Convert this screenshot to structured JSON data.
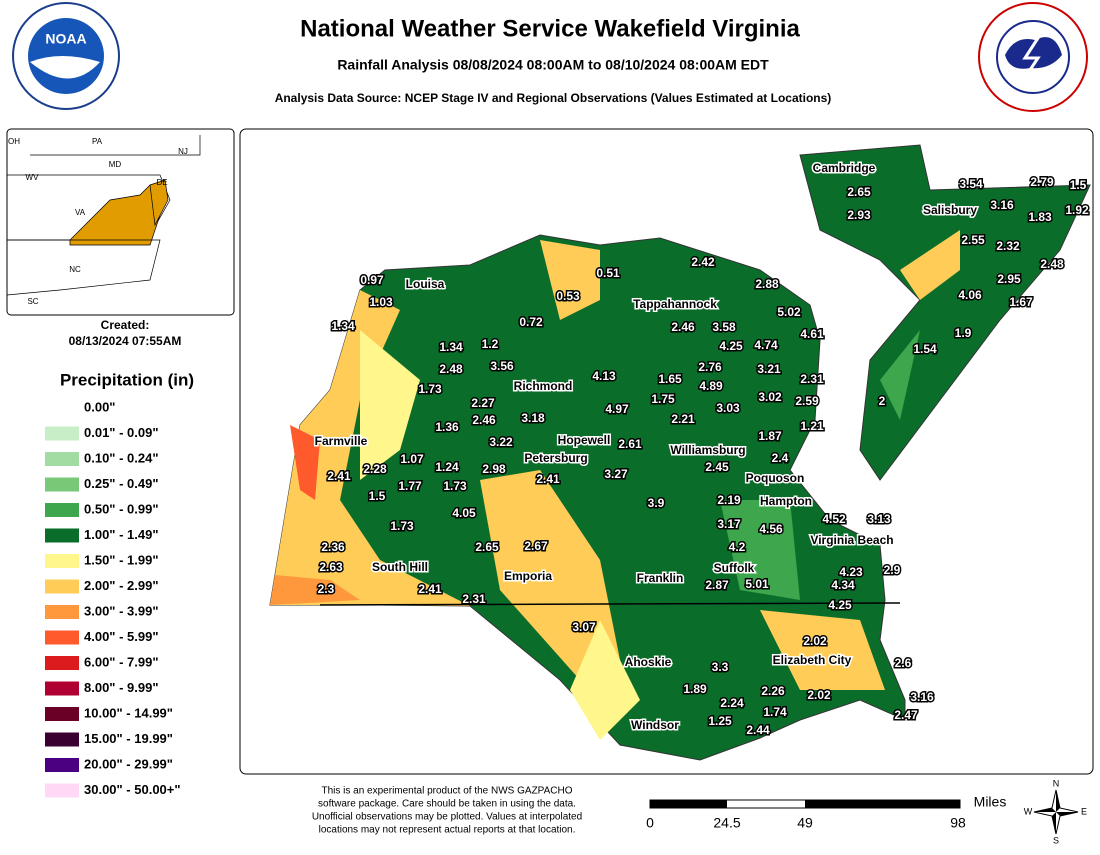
{
  "header": {
    "title": "National Weather Service Wakefield Virginia",
    "subtitle": "Rainfall Analysis 08/08/2024 08:00AM to 08/10/2024 08:00AM EDT",
    "source": "Analysis Data Source: NCEP Stage IV and Regional Observations (Values Estimated at Locations)",
    "left_logo": "NOAA"
  },
  "inset": {
    "states": [
      "PA",
      "NJ",
      "OH",
      "MD",
      "DE",
      "WV",
      "VA",
      "NC",
      "SC"
    ]
  },
  "created": {
    "label": "Created:",
    "value": "08/13/2024 07:55AM"
  },
  "legend": {
    "title": "Precipitation (in)",
    "items": [
      {
        "label": "0.00\"",
        "color": "#ffffff"
      },
      {
        "label": "0.01\" - 0.09\"",
        "color": "#c8eec8"
      },
      {
        "label": "0.10\" - 0.24\"",
        "color": "#a2dca2"
      },
      {
        "label": "0.25\" - 0.49\"",
        "color": "#78c878"
      },
      {
        "label": "0.50\" - 0.99\"",
        "color": "#3ea64c"
      },
      {
        "label": "1.00\" - 1.49\"",
        "color": "#0a6e2a"
      },
      {
        "label": "1.50\" - 1.99\"",
        "color": "#fff68c"
      },
      {
        "label": "2.00\" - 2.99\"",
        "color": "#ffcc58"
      },
      {
        "label": "3.00\" - 3.99\"",
        "color": "#ff983c"
      },
      {
        "label": "4.00\" - 5.99\"",
        "color": "#ff5a2c"
      },
      {
        "label": "6.00\" - 7.99\"",
        "color": "#dc1c1c"
      },
      {
        "label": "8.00\" - 9.99\"",
        "color": "#b00032"
      },
      {
        "label": "10.00\" - 14.99\"",
        "color": "#6a0026"
      },
      {
        "label": "15.00\" - 19.99\"",
        "color": "#3a0030"
      },
      {
        "label": "20.00\" - 29.99\"",
        "color": "#4a0080"
      },
      {
        "label": "30.00\" - 50.00+\"",
        "color": "#ffd8f6"
      }
    ]
  },
  "places": [
    "Louisa",
    "Tappahannock",
    "Richmond",
    "Hopewell",
    "Williamsburg",
    "Petersburg",
    "Poquoson",
    "Farmville",
    "Hampton",
    "Virginia Beach",
    "South Hill",
    "Emporia",
    "Franklin",
    "Suffolk",
    "Elizabeth City",
    "Ahoskie",
    "Windsor",
    "Cambridge",
    "Salisbury"
  ],
  "stations": [
    "0.97",
    "1.03",
    "1.34",
    "1.34",
    "1.2",
    "2.48",
    "3.56",
    "0.51",
    "0.53",
    "0.72",
    "2.42",
    "2.88",
    "5.02",
    "4.61",
    "2.46",
    "3.58",
    "4.25",
    "4.74",
    "2.76",
    "3.21",
    "1.65",
    "4.89",
    "2.31",
    "4.13",
    "1.73",
    "2.27",
    "1.75",
    "3.02",
    "2.59",
    "4.97",
    "3.03",
    "2.21",
    "3.18",
    "1.36",
    "2.46",
    "1.21",
    "1.87",
    "3.22",
    "2.61",
    "2.4",
    "2.45",
    "1.07",
    "1.24",
    "2.98",
    "3.27",
    "2.41",
    "2.28",
    "1.77",
    "1.73",
    "2.41",
    "1.5",
    "2.19",
    "3.9",
    "4.05",
    "1.73",
    "3.17",
    "4.56",
    "4.52",
    "3.13",
    "2.65",
    "2.67",
    "4.2",
    "2.36",
    "2.63",
    "2.3",
    "2.41",
    "2.31",
    "2.87",
    "5.01",
    "4.34",
    "4.23",
    "2.9",
    "4.25",
    "3.07",
    "2.02",
    "2.6",
    "3.3",
    "1.89",
    "2.26",
    "2.02",
    "3.16",
    "2.24",
    "1.74",
    "2.47",
    "1.25",
    "2.44",
    "2.65",
    "2.93",
    "3.54",
    "2.79",
    "1.5",
    "3.16",
    "1.83",
    "1.92",
    "2.55",
    "2.32",
    "2.48",
    "2.95",
    "4.06",
    "1.67",
    "1.9",
    "1.54",
    "2"
  ],
  "footer": {
    "disclaimer": [
      "This is an experimental product of the NWS GAZPACHO",
      "software package. Care should be taken in using the data.",
      "Unofficial observations may be plotted. Values at interpolated",
      "locations may not represent actual reports at that location."
    ],
    "scale_unit": "Miles",
    "scale_ticks": [
      "0",
      "24.5",
      "49",
      "98"
    ],
    "compass": [
      "N",
      "E",
      "S",
      "W"
    ]
  }
}
